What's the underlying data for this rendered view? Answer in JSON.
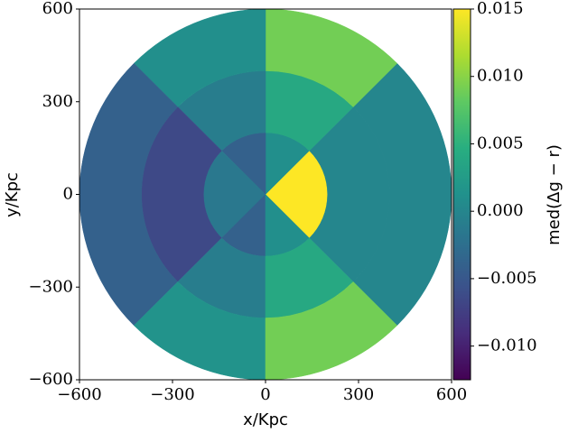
{
  "chart_data": {
    "type": "polar-heatmap",
    "xlabel": "x/Kpc",
    "ylabel": "y/Kpc",
    "colorbar_label": "med(Δg − r)",
    "colormap": "viridis",
    "r_edges": [
      0,
      200,
      400,
      600
    ],
    "theta_edges": [
      -45,
      45,
      90,
      135,
      225,
      270,
      315
    ],
    "values": [
      [
        0.015,
        0.001,
        -0.004,
        -0.0015,
        -0.004,
        0.001
      ],
      [
        0.0,
        0.004,
        -0.001,
        -0.0065,
        -0.001,
        0.004
      ],
      [
        0.0,
        0.009,
        0.001,
        -0.004,
        0.0015,
        0.009
      ]
    ],
    "xlim": [
      -600,
      600
    ],
    "ylim": [
      -600,
      600
    ],
    "xticks": [
      {
        "value": -600,
        "label": "−600"
      },
      {
        "value": -300,
        "label": "−300"
      },
      0,
      300,
      600
    ],
    "yticks": [
      {
        "value": -600,
        "label": "−600"
      },
      {
        "value": -300,
        "label": "−300"
      },
      0,
      300,
      600
    ],
    "clim": [
      -0.0125,
      0.015
    ],
    "cticks": [
      {
        "value": -0.01,
        "label": "−0.010"
      },
      {
        "value": -0.005,
        "label": "−0.005"
      },
      {
        "value": 0,
        "label": "0.000"
      },
      0.005,
      {
        "value": 0.01,
        "label": "0.010"
      },
      0.015
    ]
  }
}
